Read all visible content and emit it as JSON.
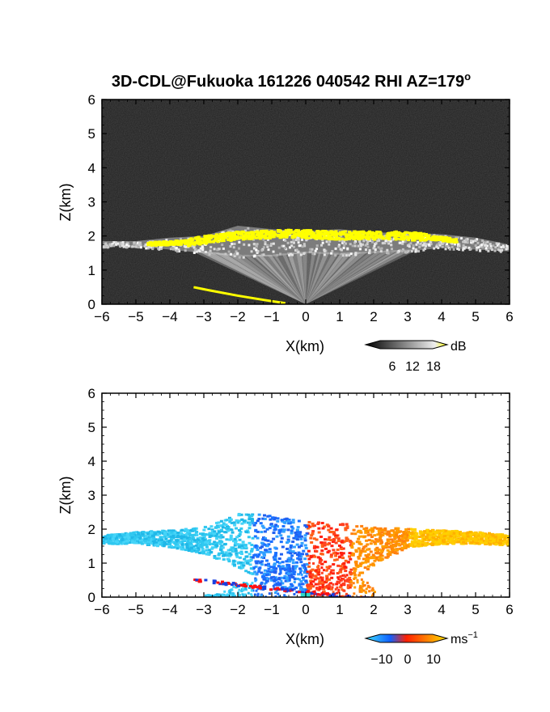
{
  "figure": {
    "title": "3D-CDL@Fukuoka 161226 040542 RHI AZ=179",
    "title_superscript": "o"
  },
  "chart_data": [
    {
      "type": "heatmap",
      "panel": "backscatter",
      "xlabel": "X(km)",
      "ylabel": "Z(km)",
      "xlim": [
        -6,
        6
      ],
      "ylim": [
        0,
        6
      ],
      "xticks": [
        "-6",
        "-5",
        "-4",
        "-3",
        "-2",
        "-1",
        "0",
        "1",
        "2",
        "3",
        "4",
        "5",
        "6"
      ],
      "yticks": [
        "0",
        "1",
        "2",
        "3",
        "4",
        "5",
        "6"
      ],
      "background_color": "#1e1e1e",
      "colorbar": {
        "unit": "dB",
        "ticks": [
          "6",
          "12",
          "18"
        ],
        "range": [
          0,
          20
        ],
        "low_color": "#000000",
        "high_color": "#ffff00"
      },
      "layers": [
        {
          "name": "aerosol boundary layer top",
          "x": [
            -6,
            -5,
            -4,
            -3,
            -2,
            -1,
            0,
            1,
            2,
            3,
            4,
            5,
            6
          ],
          "z_top": [
            1.85,
            1.85,
            1.95,
            2.0,
            2.3,
            2.2,
            2.15,
            2.2,
            2.1,
            2.1,
            2.05,
            1.95,
            1.75
          ],
          "z_bottom": [
            1.7,
            1.7,
            1.6,
            1.5,
            1.4,
            1.4,
            1.5,
            1.45,
            1.5,
            1.55,
            1.65,
            1.6,
            1.55
          ]
        },
        {
          "name": "strong echo band (>18 dB)",
          "x_range": [
            -4.7,
            4.4
          ],
          "z_center": [
            1.8,
            1.85,
            2.05,
            2.1,
            2.05,
            2.05,
            2.0,
            1.9
          ],
          "z_center_x": [
            -4.7,
            -3.5,
            -2.0,
            -0.5,
            1.0,
            2.5,
            3.5,
            4.4
          ]
        },
        {
          "name": "low-level strong echo",
          "x": [
            -3.3,
            -2.8,
            -2.0,
            -1.2,
            -0.6
          ],
          "z": [
            0.5,
            0.4,
            0.25,
            0.12,
            0.03
          ]
        }
      ]
    },
    {
      "type": "heatmap",
      "panel": "radial velocity",
      "xlabel": "X(km)",
      "ylabel": "Z(km)",
      "xlim": [
        -6,
        6
      ],
      "ylim": [
        0,
        6
      ],
      "xticks": [
        "-6",
        "-5",
        "-4",
        "-3",
        "-2",
        "-1",
        "0",
        "1",
        "2",
        "3",
        "4",
        "5",
        "6"
      ],
      "yticks": [
        "0",
        "1",
        "2",
        "3",
        "4",
        "5",
        "6"
      ],
      "colorbar": {
        "unit": "ms",
        "unit_superscript": "−1",
        "ticks": [
          "−10",
          "0",
          "10"
        ],
        "range": [
          -12,
          12
        ]
      },
      "regions": [
        {
          "name": "negative (toward)",
          "x_range": [
            -6,
            0
          ],
          "velocity_ms": -8,
          "color": "#3ad0f5"
        },
        {
          "name": "negative near origin",
          "x_range": [
            -1.5,
            0
          ],
          "velocity_ms": -4,
          "color": "#1060ff"
        },
        {
          "name": "positive near origin",
          "x_range": [
            0,
            1.5
          ],
          "velocity_ms": 2,
          "color": "#ff3010"
        },
        {
          "name": "positive (away)",
          "x_range": [
            0,
            6
          ],
          "velocity_ms": 8,
          "color": "#ffb000"
        }
      ]
    }
  ]
}
